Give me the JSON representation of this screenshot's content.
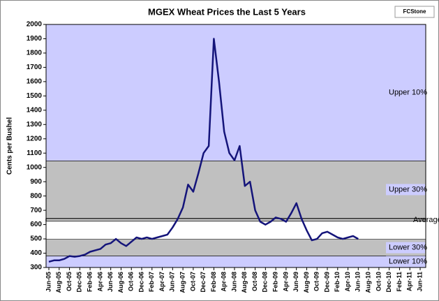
{
  "chart_data": {
    "type": "line",
    "title": "MGEX Wheat Prices the Last 5 Years",
    "y_label": "Cents per Bushel",
    "logo": "FCStone",
    "ylim": [
      300,
      2000
    ],
    "yticks": [
      300,
      400,
      500,
      600,
      700,
      800,
      900,
      1000,
      1100,
      1200,
      1300,
      1400,
      1500,
      1600,
      1700,
      1800,
      1900,
      2000
    ],
    "categories": [
      "Jun-05",
      null,
      "Aug-05",
      null,
      "Oct-05",
      null,
      "Dec-05",
      null,
      "Feb-06",
      null,
      "Apr-06",
      null,
      "Jun-06",
      null,
      "Aug-06",
      null,
      "Oct-06",
      null,
      "Dec-06",
      null,
      "Feb-07",
      null,
      "Apr-07",
      null,
      "Jun-07",
      null,
      "Aug-07",
      null,
      "Oct-07",
      null,
      "Dec-07",
      null,
      "Feb-08",
      null,
      "Apr-08",
      null,
      "Jun-08",
      null,
      "Aug-08",
      null,
      "Oct-08",
      null,
      "Dec-08",
      null,
      "Feb-09",
      null,
      "Apr-09",
      null,
      "Jun-09",
      null,
      "Aug-09",
      null,
      "Oct-09",
      null,
      "Dec-09",
      null,
      "Feb-10",
      null,
      "Apr-10",
      null,
      "Jun-10",
      null,
      "Aug-10",
      null,
      "Oct-10",
      null,
      "Dec-10",
      null,
      "Feb-11",
      null,
      "Apr-11",
      null,
      "Jun-11"
    ],
    "series": [
      {
        "color": "#14147a",
        "values": [
          340,
          350,
          350,
          360,
          380,
          375,
          380,
          390,
          410,
          420,
          430,
          460,
          470,
          500,
          470,
          450,
          480,
          510,
          500,
          510,
          500,
          510,
          520,
          530,
          580,
          640,
          720,
          880,
          830,
          960,
          1100,
          1150,
          1900,
          1600,
          1250,
          1100,
          1050,
          1150,
          870,
          900,
          700,
          620,
          600,
          620,
          650,
          640,
          620,
          680,
          750,
          640,
          560,
          490,
          500,
          540,
          550,
          530,
          510,
          500,
          510,
          520,
          500,
          null,
          null,
          null,
          null,
          null,
          null,
          null,
          null,
          null,
          null,
          null,
          null
        ]
      }
    ],
    "bands": [
      {
        "label": "Upper 10%",
        "from": 1045,
        "to": 2000,
        "color": "#ccccff"
      },
      {
        "label": "Upper 30%",
        "from": 645,
        "to": 1045,
        "color": "#c0c0c0"
      },
      {
        "label": "Average",
        "from": 625,
        "to": 640,
        "color": "#e8e8e8"
      },
      {
        "label": "Lower 30%",
        "from": 380,
        "to": 497,
        "color": "#c0c0c0"
      },
      {
        "label": "Lower 10%",
        "from": 300,
        "to": 380,
        "color": "#ccccff"
      }
    ]
  }
}
